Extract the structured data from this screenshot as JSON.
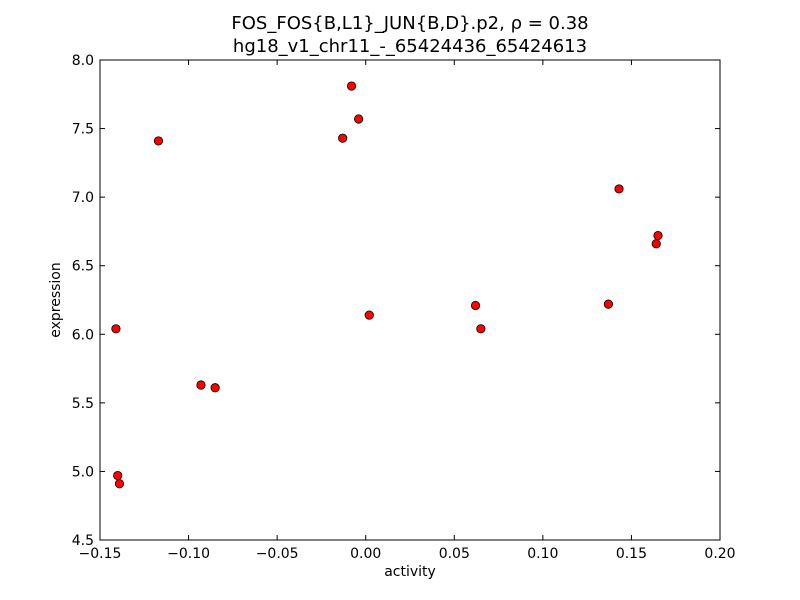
{
  "chart_data": {
    "type": "scatter",
    "title_line1": "FOS_FOS{B,L1}_JUN{B,D}.p2, ρ = 0.38",
    "title_line2": "hg18_v1_chr11_-_65424436_65424613",
    "xlabel": "activity",
    "ylabel": "expression",
    "xlim": [
      -0.15,
      0.2
    ],
    "ylim": [
      4.5,
      8.0
    ],
    "xticks": [
      -0.15,
      -0.1,
      -0.05,
      0.0,
      0.05,
      0.1,
      0.15,
      0.2
    ],
    "xtick_labels": [
      "−0.15",
      "−0.10",
      "−0.05",
      "0.00",
      "0.05",
      "0.10",
      "0.15",
      "0.20"
    ],
    "yticks": [
      4.5,
      5.0,
      5.5,
      6.0,
      6.5,
      7.0,
      7.5,
      8.0
    ],
    "ytick_labels": [
      "4.5",
      "5.0",
      "5.5",
      "6.0",
      "6.5",
      "7.0",
      "7.5",
      "8.0"
    ],
    "grid": false,
    "marker_color": "#ff0000",
    "marker_edge_color": "#000000",
    "points": [
      {
        "x": -0.141,
        "y": 6.04
      },
      {
        "x": -0.14,
        "y": 4.97
      },
      {
        "x": -0.139,
        "y": 4.91
      },
      {
        "x": -0.117,
        "y": 7.41
      },
      {
        "x": -0.093,
        "y": 5.63
      },
      {
        "x": -0.085,
        "y": 5.61
      },
      {
        "x": -0.013,
        "y": 7.43
      },
      {
        "x": -0.008,
        "y": 7.81
      },
      {
        "x": -0.004,
        "y": 7.57
      },
      {
        "x": 0.002,
        "y": 6.14
      },
      {
        "x": 0.062,
        "y": 6.21
      },
      {
        "x": 0.065,
        "y": 6.04
      },
      {
        "x": 0.137,
        "y": 6.22
      },
      {
        "x": 0.143,
        "y": 7.06
      },
      {
        "x": 0.164,
        "y": 6.66
      },
      {
        "x": 0.165,
        "y": 6.72
      }
    ]
  }
}
